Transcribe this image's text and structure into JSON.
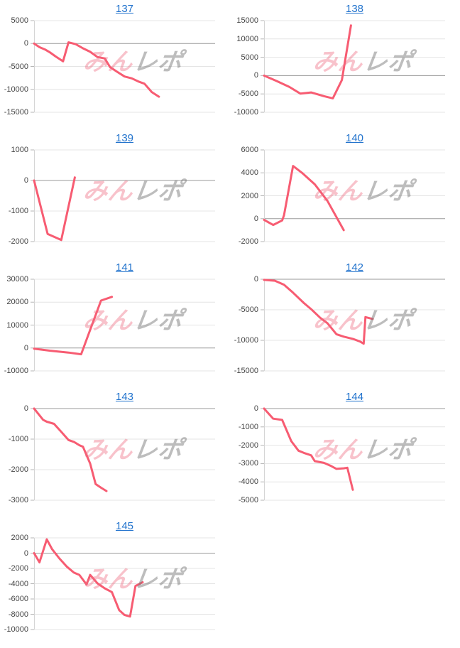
{
  "watermark": {
    "part1": "みん",
    "part2": "レポ"
  },
  "colors": {
    "line": "#f75c72",
    "title_link": "#2273cd",
    "grid_line": "#e4e4e4",
    "zero_line": "#9a9a9a",
    "axis_line": "#d5d5d5",
    "tick_mark": "#b5b5b5",
    "tick_label": "#454545",
    "watermark_pink": "#ee6e84",
    "watermark_gray": "#767676"
  },
  "chart_data": [
    {
      "id": "137",
      "type": "line",
      "ylim": [
        -15000,
        5000
      ],
      "yticks": [
        5000,
        0,
        -5000,
        -10000,
        -15000
      ],
      "points": [
        [
          0,
          0
        ],
        [
          0.03,
          -800
        ],
        [
          0.06,
          -1300
        ],
        [
          0.09,
          -2000
        ],
        [
          0.12,
          -2850
        ],
        [
          0.16,
          -3880
        ],
        [
          0.19,
          250
        ],
        [
          0.23,
          -150
        ],
        [
          0.27,
          -1050
        ],
        [
          0.31,
          -1800
        ],
        [
          0.35,
          -2950
        ],
        [
          0.39,
          -3250
        ],
        [
          0.42,
          -5150
        ],
        [
          0.46,
          -6200
        ],
        [
          0.5,
          -7200
        ],
        [
          0.54,
          -7600
        ],
        [
          0.58,
          -8350
        ],
        [
          0.61,
          -8760
        ],
        [
          0.65,
          -10600
        ],
        [
          0.69,
          -11600
        ]
      ]
    },
    {
      "id": "138",
      "type": "line",
      "ylim": [
        -10000,
        15000
      ],
      "yticks": [
        15000,
        10000,
        5000,
        0,
        -5000,
        -10000
      ],
      "points": [
        [
          0,
          0
        ],
        [
          0.07,
          -1500
        ],
        [
          0.14,
          -3100
        ],
        [
          0.2,
          -4900
        ],
        [
          0.26,
          -4600
        ],
        [
          0.33,
          -5600
        ],
        [
          0.38,
          -6200
        ],
        [
          0.43,
          -1200
        ],
        [
          0.48,
          13700
        ]
      ]
    },
    {
      "id": "139",
      "type": "line",
      "ylim": [
        -2000,
        1000
      ],
      "yticks": [
        1000,
        0,
        -1000,
        -2000
      ],
      "points": [
        [
          0,
          0
        ],
        [
          0.075,
          -1750
        ],
        [
          0.15,
          -1950
        ],
        [
          0.225,
          100
        ]
      ]
    },
    {
      "id": "140",
      "type": "line",
      "ylim": [
        -2000,
        6000
      ],
      "yticks": [
        6000,
        4000,
        2000,
        0,
        -2000
      ],
      "points": [
        [
          0,
          -100
        ],
        [
          0.05,
          -550
        ],
        [
          0.1,
          -150
        ],
        [
          0.11,
          300
        ],
        [
          0.16,
          4600
        ],
        [
          0.21,
          4000
        ],
        [
          0.28,
          3000
        ],
        [
          0.35,
          1550
        ],
        [
          0.44,
          -1000
        ]
      ]
    },
    {
      "id": "141",
      "type": "line",
      "ylim": [
        -10000,
        30000
      ],
      "yticks": [
        30000,
        20000,
        10000,
        0,
        -10000
      ],
      "points": [
        [
          0,
          -300
        ],
        [
          0.09,
          -1200
        ],
        [
          0.19,
          -2000
        ],
        [
          0.26,
          -2750
        ],
        [
          0.37,
          20700
        ],
        [
          0.43,
          22300
        ]
      ]
    },
    {
      "id": "142",
      "type": "line",
      "ylim": [
        -15000,
        0
      ],
      "yticks": [
        0,
        -5000,
        -10000,
        -15000
      ],
      "points": [
        [
          0,
          -100
        ],
        [
          0.06,
          -250
        ],
        [
          0.11,
          -900
        ],
        [
          0.16,
          -2200
        ],
        [
          0.22,
          -3900
        ],
        [
          0.26,
          -4900
        ],
        [
          0.31,
          -6300
        ],
        [
          0.35,
          -7200
        ],
        [
          0.4,
          -9000
        ],
        [
          0.44,
          -9400
        ],
        [
          0.49,
          -9750
        ],
        [
          0.53,
          -10200
        ],
        [
          0.55,
          -10550
        ],
        [
          0.56,
          -6200
        ],
        [
          0.6,
          -6500
        ]
      ]
    },
    {
      "id": "143",
      "type": "line",
      "ylim": [
        -3000,
        0
      ],
      "yticks": [
        0,
        -1000,
        -2000,
        -3000
      ],
      "points": [
        [
          0,
          0
        ],
        [
          0.05,
          -370
        ],
        [
          0.07,
          -430
        ],
        [
          0.11,
          -500
        ],
        [
          0.15,
          -760
        ],
        [
          0.19,
          -1030
        ],
        [
          0.22,
          -1090
        ],
        [
          0.25,
          -1200
        ],
        [
          0.27,
          -1250
        ],
        [
          0.31,
          -1800
        ],
        [
          0.34,
          -2470
        ],
        [
          0.37,
          -2590
        ],
        [
          0.4,
          -2700
        ]
      ]
    },
    {
      "id": "144",
      "type": "line",
      "ylim": [
        -5000,
        0
      ],
      "yticks": [
        0,
        -1000,
        -2000,
        -3000,
        -4000,
        -5000
      ],
      "points": [
        [
          0,
          0
        ],
        [
          0.05,
          -550
        ],
        [
          0.1,
          -620
        ],
        [
          0.15,
          -1780
        ],
        [
          0.19,
          -2300
        ],
        [
          0.22,
          -2420
        ],
        [
          0.26,
          -2550
        ],
        [
          0.28,
          -2870
        ],
        [
          0.33,
          -2960
        ],
        [
          0.37,
          -3130
        ],
        [
          0.4,
          -3290
        ],
        [
          0.44,
          -3260
        ],
        [
          0.46,
          -3230
        ],
        [
          0.49,
          -4430
        ]
      ]
    },
    {
      "id": "145",
      "type": "line",
      "ylim": [
        -10000,
        2000
      ],
      "yticks": [
        2000,
        0,
        -2000,
        -4000,
        -6000,
        -8000,
        -10000
      ],
      "points": [
        [
          0,
          0
        ],
        [
          0.03,
          -1200
        ],
        [
          0.07,
          1800
        ],
        [
          0.1,
          500
        ],
        [
          0.14,
          -700
        ],
        [
          0.18,
          -1750
        ],
        [
          0.22,
          -2550
        ],
        [
          0.25,
          -2850
        ],
        [
          0.29,
          -4100
        ],
        [
          0.31,
          -2850
        ],
        [
          0.35,
          -3950
        ],
        [
          0.39,
          -4600
        ],
        [
          0.43,
          -5100
        ],
        [
          0.47,
          -7450
        ],
        [
          0.5,
          -8100
        ],
        [
          0.53,
          -8300
        ],
        [
          0.56,
          -4300
        ],
        [
          0.6,
          -3800
        ]
      ]
    }
  ]
}
